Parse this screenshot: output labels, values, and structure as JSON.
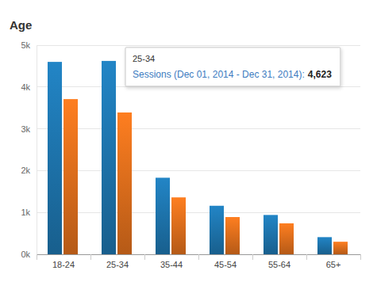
{
  "chart_data": {
    "type": "bar",
    "title": "Age",
    "categories": [
      "18-24",
      "25-34",
      "35-44",
      "45-54",
      "55-64",
      "65+"
    ],
    "series": [
      {
        "color": "#1f7ab5",
        "values": [
          4600,
          4623,
          1830,
          1160,
          940,
          410
        ]
      },
      {
        "color": "#e8731d",
        "values": [
          3710,
          3390,
          1360,
          890,
          740,
          300
        ]
      }
    ],
    "ylim": [
      0,
      5000
    ],
    "yticks": [
      {
        "value": 0,
        "label": "0k"
      },
      {
        "value": 1000,
        "label": "1k"
      },
      {
        "value": 2000,
        "label": "2k"
      },
      {
        "value": 3000,
        "label": "3k"
      },
      {
        "value": 4000,
        "label": "4k"
      },
      {
        "value": 5000,
        "label": "5k"
      }
    ],
    "grid": true,
    "annotations": [
      {
        "title": "25-34",
        "text": "Sessions (Dec 01, 2014 - Dec 31, 2014):",
        "value": 4623,
        "label": "4,623"
      }
    ]
  }
}
